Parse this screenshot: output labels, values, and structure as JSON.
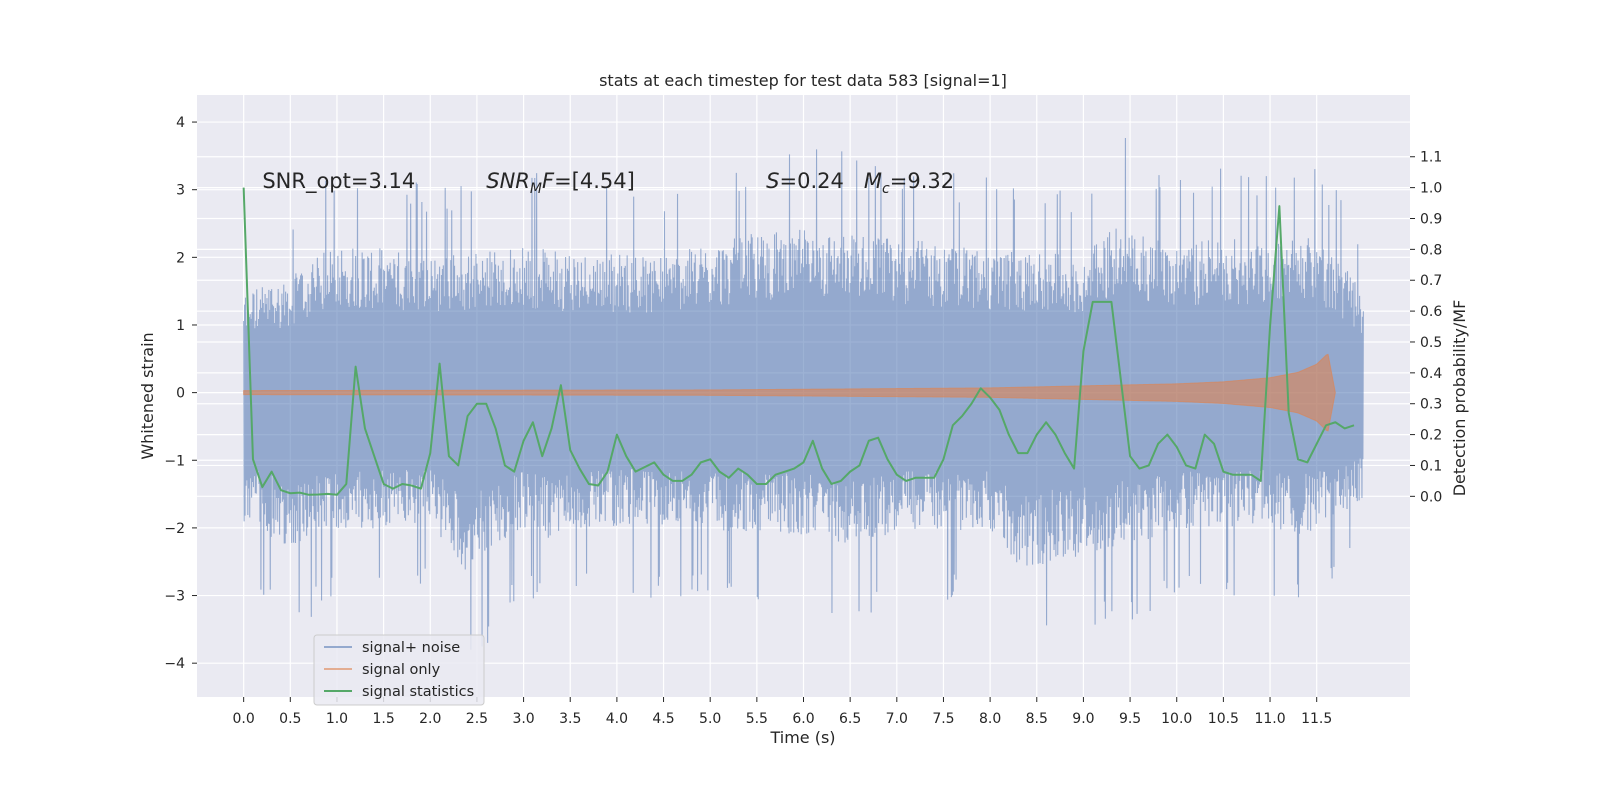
{
  "chart_data": {
    "type": "line",
    "title": "stats at each timestep for test data 583 [signal=1]",
    "xlabel": "Time (s)",
    "ylabel": "Whitened strain",
    "y2label": "Detection probability/MF",
    "xlim": [
      -0.5,
      12.5
    ],
    "ylim": [
      -4.5,
      4.4
    ],
    "y2lim": [
      -0.65,
      1.3
    ],
    "xticks": [
      0.0,
      0.5,
      1.0,
      1.5,
      2.0,
      2.5,
      3.0,
      3.5,
      4.0,
      4.5,
      5.0,
      5.5,
      6.0,
      6.5,
      7.0,
      7.5,
      8.0,
      8.5,
      9.0,
      9.5,
      10.0,
      10.5,
      11.0,
      11.5
    ],
    "xtick_labels": [
      "0.0",
      "0.5",
      "1.0",
      "1.5",
      "2.0",
      "2.5",
      "3.0",
      "3.5",
      "4.0",
      "4.5",
      "5.0",
      "5.5",
      "6.0",
      "6.5",
      "7.0",
      "7.5",
      "8.0",
      "8.5",
      "9.0",
      "9.5",
      "10.0",
      "10.5",
      "11.0",
      "11.5"
    ],
    "yticks": [
      -4,
      -3,
      -2,
      -1,
      0,
      1,
      2,
      3,
      4
    ],
    "ytick_labels": [
      "−4",
      "−3",
      "−2",
      "−1",
      "0",
      "1",
      "2",
      "3",
      "4"
    ],
    "y2ticks": [
      0.0,
      0.1,
      0.2,
      0.3,
      0.4,
      0.5,
      0.6,
      0.7,
      0.8,
      0.9,
      1.0,
      1.1
    ],
    "y2tick_labels": [
      "0.0",
      "0.1",
      "0.2",
      "0.3",
      "0.4",
      "0.5",
      "0.6",
      "0.7",
      "0.8",
      "0.9",
      "1.0",
      "1.1"
    ],
    "grid": true,
    "legend_position": "lower-left",
    "annotations": [
      {
        "text": "SNR_opt=3.14",
        "x": 0.2,
        "y": 3.14
      },
      {
        "text": "SNR_MF=[4.54]",
        "x": 2.6,
        "y": 3.14
      },
      {
        "text": "S=0.24   M_c=9.32",
        "x": 5.6,
        "y": 3.14
      }
    ],
    "series": [
      {
        "name": "signal+ noise",
        "axis": "left",
        "kind": "noise",
        "color": "#4c72b0",
        "x_range": [
          0.0,
          12.0
        ],
        "upper_envelope": [
          [
            0.0,
            2.3
          ],
          [
            0.5,
            2.6
          ],
          [
            1.0,
            3.4
          ],
          [
            2.0,
            3.1
          ],
          [
            3.0,
            3.3
          ],
          [
            3.5,
            3.2
          ],
          [
            4.5,
            3.1
          ],
          [
            5.5,
            3.6
          ],
          [
            6.0,
            3.7
          ],
          [
            7.0,
            3.5
          ],
          [
            8.0,
            3.2
          ],
          [
            9.0,
            3.1
          ],
          [
            9.4,
            3.9
          ],
          [
            10.0,
            3.3
          ],
          [
            10.5,
            3.5
          ],
          [
            11.0,
            3.4
          ],
          [
            11.5,
            3.6
          ],
          [
            12.0,
            2.3
          ]
        ],
        "lower_envelope": [
          [
            0.0,
            -2.9
          ],
          [
            0.5,
            -3.5
          ],
          [
            1.0,
            -3.1
          ],
          [
            2.0,
            -3.0
          ],
          [
            2.4,
            -4.1
          ],
          [
            3.0,
            -3.1
          ],
          [
            3.3,
            -3.3
          ],
          [
            4.0,
            -3.0
          ],
          [
            5.0,
            -3.1
          ],
          [
            6.0,
            -3.2
          ],
          [
            6.6,
            -3.5
          ],
          [
            7.0,
            -3.1
          ],
          [
            8.0,
            -3.1
          ],
          [
            8.3,
            -4.0
          ],
          [
            8.7,
            -3.8
          ],
          [
            9.4,
            -3.5
          ],
          [
            10.0,
            -3.1
          ],
          [
            11.0,
            -3.0
          ],
          [
            11.3,
            -3.3
          ],
          [
            12.0,
            -2.4
          ]
        ]
      },
      {
        "name": "signal only",
        "axis": "left",
        "kind": "chirp",
        "color": "#dd8452",
        "x_range": [
          0.0,
          11.7
        ],
        "amplitude_envelope": [
          [
            0.0,
            0.03
          ],
          [
            5.0,
            0.04
          ],
          [
            8.0,
            0.07
          ],
          [
            9.0,
            0.1
          ],
          [
            10.0,
            0.13
          ],
          [
            10.5,
            0.16
          ],
          [
            11.0,
            0.22
          ],
          [
            11.3,
            0.3
          ],
          [
            11.5,
            0.42
          ],
          [
            11.62,
            0.58
          ],
          [
            11.7,
            0.0
          ]
        ]
      },
      {
        "name": "signal statistics",
        "axis": "right",
        "kind": "line",
        "color": "#55a868",
        "x": [
          0.0,
          0.1,
          0.2,
          0.3,
          0.4,
          0.5,
          0.6,
          0.7,
          0.8,
          0.9,
          1.0,
          1.1,
          1.2,
          1.3,
          1.4,
          1.5,
          1.6,
          1.7,
          1.8,
          1.9,
          2.0,
          2.1,
          2.2,
          2.3,
          2.4,
          2.5,
          2.6,
          2.7,
          2.8,
          2.9,
          3.0,
          3.1,
          3.2,
          3.3,
          3.4,
          3.5,
          3.6,
          3.7,
          3.8,
          3.9,
          4.0,
          4.1,
          4.2,
          4.3,
          4.4,
          4.5,
          4.6,
          4.7,
          4.8,
          4.9,
          5.0,
          5.1,
          5.2,
          5.3,
          5.4,
          5.5,
          5.6,
          5.7,
          5.8,
          5.9,
          6.0,
          6.1,
          6.2,
          6.3,
          6.4,
          6.5,
          6.6,
          6.7,
          6.8,
          6.9,
          7.0,
          7.1,
          7.2,
          7.3,
          7.4,
          7.5,
          7.6,
          7.7,
          7.8,
          7.9,
          8.0,
          8.1,
          8.2,
          8.3,
          8.4,
          8.5,
          8.6,
          8.7,
          8.8,
          8.9,
          9.0,
          9.1,
          9.2,
          9.3,
          9.4,
          9.5,
          9.6,
          9.7,
          9.8,
          9.9,
          10.0,
          10.1,
          10.2,
          10.3,
          10.4,
          10.5,
          10.6,
          10.7,
          10.8,
          10.9,
          11.0,
          11.1,
          11.2,
          11.3,
          11.4,
          11.5,
          11.6,
          11.7,
          11.8,
          11.9
        ],
        "values": [
          1.0,
          0.12,
          0.03,
          0.08,
          0.02,
          0.01,
          0.012,
          0.005,
          0.006,
          0.008,
          0.005,
          0.04,
          0.42,
          0.22,
          0.13,
          0.04,
          0.025,
          0.04,
          0.035,
          0.025,
          0.14,
          0.43,
          0.13,
          0.1,
          0.26,
          0.3,
          0.3,
          0.22,
          0.1,
          0.08,
          0.18,
          0.24,
          0.13,
          0.22,
          0.36,
          0.15,
          0.09,
          0.04,
          0.035,
          0.08,
          0.2,
          0.13,
          0.08,
          0.095,
          0.11,
          0.07,
          0.05,
          0.05,
          0.07,
          0.11,
          0.12,
          0.08,
          0.06,
          0.09,
          0.07,
          0.04,
          0.04,
          0.07,
          0.08,
          0.09,
          0.11,
          0.18,
          0.09,
          0.04,
          0.05,
          0.08,
          0.1,
          0.18,
          0.19,
          0.12,
          0.07,
          0.05,
          0.06,
          0.06,
          0.06,
          0.12,
          0.23,
          0.26,
          0.3,
          0.35,
          0.32,
          0.28,
          0.2,
          0.14,
          0.14,
          0.2,
          0.24,
          0.2,
          0.14,
          0.09,
          0.47,
          0.63,
          0.63,
          0.63,
          0.38,
          0.13,
          0.09,
          0.1,
          0.17,
          0.2,
          0.16,
          0.1,
          0.09,
          0.2,
          0.17,
          0.08,
          0.07,
          0.07,
          0.07,
          0.05,
          0.55,
          0.94,
          0.27,
          0.12,
          0.11,
          0.17,
          0.23,
          0.24,
          0.22,
          0.23
        ]
      }
    ]
  }
}
